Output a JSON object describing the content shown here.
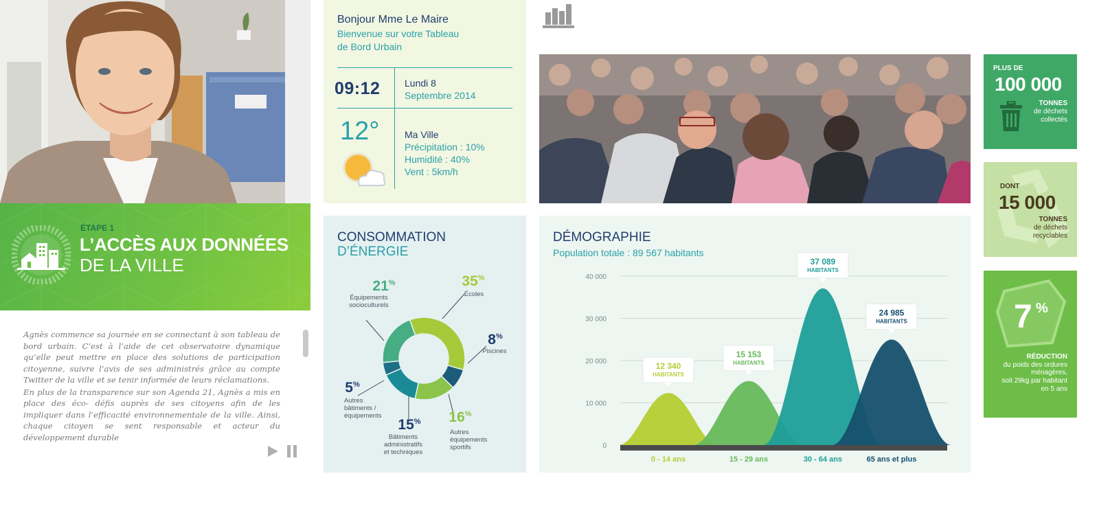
{
  "step": {
    "label": "ÉTAPE 1",
    "title_line1": "L’ACCÈS AUX DONNÉES",
    "title_line2": "DE LA VILLE"
  },
  "story": {
    "p1": "Agnès commence sa journée en se connectant à son tableau de bord urbain. C’est à l’aide de cet observatoire dynamique qu’elle peut mettre en place des solutions de participation citoyenne, suivre l’avis de ses administrés grâce au compte Twitter de la ville et se tenir informée de leurs réclamations.",
    "p2": "En plus de la transparence sur son Agenda 21, Agnès a mis en place des éco- défis auprès de ses citoyens afin de les impliquer dans l’efficacité environnementale de la ville. Ainsi, chaque citoyen se sent responsable et acteur du développement durable"
  },
  "welcome": {
    "greeting": "Bonjour Mme Le Maire",
    "line2": "Bienvenue sur votre Tableau",
    "line3": "de Bord Urbain",
    "time": "09:12",
    "day": "Lundi 8",
    "month": "Septembre 2014",
    "temp": "12°",
    "city": "Ma Ville",
    "precip": "Précipitation : 10%",
    "humidity": "Humidité : 40%",
    "wind": "Vent : 5km/h"
  },
  "energy": {
    "title1": "CONSOMMATION",
    "title2": "D’ÉNERGIE",
    "pct": "%",
    "slices": [
      {
        "value": 35,
        "num": "35",
        "label1": "Écoles",
        "label2": "",
        "label3": "",
        "color": "#a6c93a"
      },
      {
        "value": 8,
        "num": "8",
        "label1": "Piscines",
        "label2": "",
        "label3": "",
        "color": "#1d5b7a"
      },
      {
        "value": 16,
        "num": "16",
        "label1": "Autres",
        "label2": "équipements",
        "label3": "sportifs",
        "color": "#8cc34a"
      },
      {
        "value": 15,
        "num": "15",
        "label1": "Bâtiments",
        "label2": "administratifs",
        "label3": "et techniques",
        "color": "#1a8a97"
      },
      {
        "value": 5,
        "num": "5",
        "label1": "Autres",
        "label2": "bâtiments /",
        "label3": "équipements",
        "color": "#1e6e86"
      },
      {
        "value": 21,
        "num": "21",
        "label1": "Équipements",
        "label2": "socioculturels",
        "label3": "",
        "color": "#47ad83"
      }
    ]
  },
  "demo": {
    "title": "DÉMOGRAPHIE",
    "subtitle": "Population totale : 89 567 habitants"
  },
  "chart_data": {
    "type": "area",
    "title": "DÉMOGRAPHIE",
    "subtitle": "Population totale : 89 567 habitants",
    "categories": [
      "0 - 14 ans",
      "15 - 29 ans",
      "30 - 64 ans",
      "65 ans et plus"
    ],
    "values": [
      12340,
      15153,
      37089,
      24985
    ],
    "value_labels": [
      "12 340",
      "15 153",
      "37 089",
      "24 985"
    ],
    "unit_label": "HABITANTS",
    "ylim": [
      0,
      40000
    ],
    "yticks": [
      "0",
      "10 000",
      "20 000",
      "30 000",
      "40 000"
    ],
    "grid": true,
    "colors": [
      "#b5cd33",
      "#66b95a",
      "#1d9e98",
      "#15506e"
    ]
  },
  "tiles": {
    "t1": {
      "small": "PLUS DE",
      "big": "100 000",
      "unit": "TONNES",
      "desc1": "de déchets",
      "desc2": "collectés"
    },
    "t2": {
      "small": "DONT",
      "big": "15 000",
      "unit": "TONNES",
      "desc1": "de déchets",
      "desc2": "recyclables"
    },
    "t3": {
      "big": "7",
      "pct": "%",
      "unit": "RÉDUCTION",
      "desc1": "du poids des ordures",
      "desc2": "ménagères,",
      "desc3": "soit 29kg par habitant",
      "desc4": "en 5 ans"
    }
  },
  "icons": {
    "chart": "bar-chart-icon",
    "trash": "trash-icon",
    "play": "play-icon",
    "pause": "pause-icon",
    "weather": "partly-cloudy-icon",
    "city": "city-buildings-icon"
  }
}
